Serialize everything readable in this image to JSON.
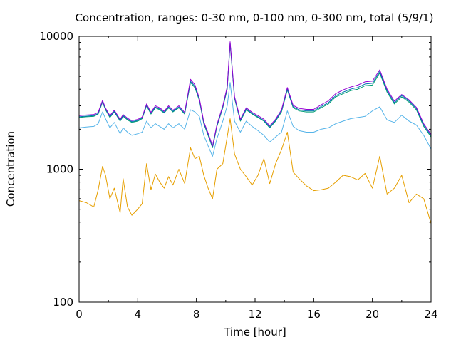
{
  "chart_data": {
    "type": "line",
    "title": "Concentration, ranges: 0-30 nm, 0-100 nm, 0-300 nm, total (5/9/1)",
    "xlabel": "Time [hour]",
    "ylabel": "Concentration",
    "xlim": [
      0,
      24
    ],
    "ylim": [
      100,
      10000
    ],
    "yscale": "log",
    "grid": false,
    "legend": "none",
    "x_ticks": [
      0,
      4,
      8,
      12,
      16,
      20,
      24
    ],
    "x_tick_labels": [
      "0",
      "4",
      "8",
      "12",
      "16",
      "20",
      "24"
    ],
    "y_ticks": [
      100,
      1000,
      10000
    ],
    "y_tick_labels": [
      "100",
      "1000",
      "10000"
    ],
    "series": [
      {
        "color": "#e69f00",
        "x": [
          0,
          0.5,
          1,
          1.3,
          1.6,
          1.8,
          2.1,
          2.4,
          2.8,
          3.0,
          3.3,
          3.6,
          4.0,
          4.3,
          4.6,
          4.9,
          5.2,
          5.5,
          5.8,
          6.1,
          6.4,
          6.8,
          7.2,
          7.6,
          7.9,
          8.2,
          8.5,
          8.8,
          9.1,
          9.4,
          9.8,
          10.1,
          10.3,
          10.6,
          11.0,
          11.4,
          11.8,
          12.2,
          12.6,
          13.0,
          13.4,
          13.8,
          14.2,
          14.6,
          15.0,
          15.5,
          16.0,
          16.5,
          17.0,
          17.5,
          18.0,
          18.5,
          19.0,
          19.5,
          20.0,
          20.5,
          21.0,
          21.5,
          22.0,
          22.5,
          23.0,
          23.5,
          24.0
        ],
        "values": [
          580,
          560,
          520,
          700,
          1050,
          900,
          600,
          720,
          470,
          850,
          520,
          450,
          500,
          550,
          1100,
          700,
          920,
          800,
          720,
          880,
          760,
          1000,
          780,
          1450,
          1200,
          1250,
          900,
          720,
          600,
          1000,
          1100,
          1750,
          2400,
          1300,
          1000,
          880,
          760,
          900,
          1200,
          780,
          1100,
          1400,
          1900,
          950,
          850,
          750,
          690,
          700,
          720,
          800,
          900,
          880,
          830,
          930,
          720,
          1250,
          650,
          720,
          900,
          560,
          650,
          600,
          390
        ]
      },
      {
        "color": "#56b4e9",
        "x": [
          0,
          0.5,
          1,
          1.3,
          1.6,
          1.8,
          2.1,
          2.4,
          2.8,
          3.0,
          3.3,
          3.6,
          4.0,
          4.3,
          4.6,
          4.9,
          5.2,
          5.5,
          5.8,
          6.1,
          6.4,
          6.8,
          7.2,
          7.6,
          7.9,
          8.2,
          8.5,
          8.8,
          9.1,
          9.4,
          9.8,
          10.1,
          10.3,
          10.6,
          11.0,
          11.4,
          11.8,
          12.2,
          12.6,
          13.0,
          13.4,
          13.8,
          14.2,
          14.6,
          15.0,
          15.5,
          16.0,
          16.5,
          17.0,
          17.5,
          18.0,
          18.5,
          19.0,
          19.5,
          20.0,
          20.5,
          21.0,
          21.5,
          22.0,
          22.5,
          23.0,
          23.5,
          24.0
        ],
        "values": [
          2050,
          2080,
          2100,
          2200,
          2700,
          2400,
          2050,
          2250,
          1850,
          2050,
          1900,
          1800,
          1850,
          1900,
          2300,
          2050,
          2200,
          2100,
          2000,
          2200,
          2050,
          2200,
          2000,
          2800,
          2700,
          2500,
          1800,
          1500,
          1250,
          1700,
          2300,
          3000,
          4500,
          2300,
          1900,
          2300,
          2100,
          1950,
          1800,
          1600,
          1750,
          1900,
          2750,
          2100,
          1950,
          1900,
          1900,
          2000,
          2050,
          2200,
          2300,
          2400,
          2450,
          2500,
          2750,
          2950,
          2350,
          2250,
          2550,
          2300,
          2150,
          1800,
          1420
        ]
      },
      {
        "color": "#009e73",
        "x": [
          0,
          0.5,
          1,
          1.3,
          1.6,
          1.8,
          2.1,
          2.4,
          2.8,
          3.0,
          3.3,
          3.6,
          4.0,
          4.3,
          4.6,
          4.9,
          5.2,
          5.5,
          5.8,
          6.1,
          6.4,
          6.8,
          7.2,
          7.6,
          7.9,
          8.2,
          8.5,
          8.8,
          9.1,
          9.4,
          9.8,
          10.1,
          10.3,
          10.6,
          11.0,
          11.4,
          11.8,
          12.2,
          12.6,
          13.0,
          13.4,
          13.8,
          14.2,
          14.6,
          15.0,
          15.5,
          16.0,
          16.5,
          17.0,
          17.5,
          18.0,
          18.5,
          19.0,
          19.5,
          20.0,
          20.5,
          21.0,
          21.5,
          22.0,
          22.5,
          23.0,
          23.5,
          24.0
        ],
        "values": [
          2450,
          2480,
          2500,
          2600,
          3200,
          2800,
          2450,
          2700,
          2300,
          2500,
          2350,
          2250,
          2300,
          2400,
          3000,
          2600,
          2900,
          2800,
          2650,
          2900,
          2700,
          2900,
          2600,
          4500,
          4100,
          3300,
          2200,
          1800,
          1450,
          2100,
          2900,
          4000,
          8800,
          3400,
          2300,
          2800,
          2600,
          2450,
          2300,
          2050,
          2300,
          2700,
          3950,
          2900,
          2750,
          2700,
          2700,
          2900,
          3100,
          3500,
          3700,
          3900,
          4000,
          4250,
          4300,
          5300,
          3800,
          3100,
          3500,
          3200,
          2800,
          2100,
          1750
        ]
      },
      {
        "color": "#0072b2",
        "x": [
          0,
          0.5,
          1,
          1.3,
          1.6,
          1.8,
          2.1,
          2.4,
          2.8,
          3.0,
          3.3,
          3.6,
          4.0,
          4.3,
          4.6,
          4.9,
          5.2,
          5.5,
          5.8,
          6.1,
          6.4,
          6.8,
          7.2,
          7.6,
          7.9,
          8.2,
          8.5,
          8.8,
          9.1,
          9.4,
          9.8,
          10.1,
          10.3,
          10.6,
          11.0,
          11.4,
          11.8,
          12.2,
          12.6,
          13.0,
          13.4,
          13.8,
          14.2,
          14.6,
          15.0,
          15.5,
          16.0,
          16.5,
          17.0,
          17.5,
          18.0,
          18.5,
          19.0,
          19.5,
          20.0,
          20.5,
          21.0,
          21.5,
          22.0,
          22.5,
          23.0,
          23.5,
          24.0
        ],
        "values": [
          2480,
          2510,
          2530,
          2630,
          3240,
          2830,
          2480,
          2730,
          2330,
          2530,
          2380,
          2280,
          2330,
          2430,
          3040,
          2630,
          2940,
          2840,
          2680,
          2940,
          2730,
          2940,
          2630,
          4600,
          4200,
          3350,
          2230,
          1830,
          1470,
          2130,
          2940,
          4080,
          9000,
          3450,
          2330,
          2840,
          2630,
          2480,
          2330,
          2080,
          2330,
          2740,
          4020,
          2950,
          2800,
          2750,
          2750,
          2960,
          3170,
          3580,
          3800,
          4000,
          4120,
          4380,
          4430,
          5450,
          3900,
          3170,
          3580,
          3270,
          2860,
          2150,
          1790
        ]
      },
      {
        "color": "#9400d3",
        "x": [
          0,
          0.5,
          1,
          1.3,
          1.6,
          1.8,
          2.1,
          2.4,
          2.8,
          3.0,
          3.3,
          3.6,
          4.0,
          4.3,
          4.6,
          4.9,
          5.2,
          5.5,
          5.8,
          6.1,
          6.4,
          6.8,
          7.2,
          7.6,
          7.9,
          8.2,
          8.5,
          8.8,
          9.1,
          9.4,
          9.8,
          10.1,
          10.3,
          10.6,
          11.0,
          11.4,
          11.8,
          12.2,
          12.6,
          13.0,
          13.4,
          13.8,
          14.2,
          14.6,
          15.0,
          15.5,
          16.0,
          16.5,
          17.0,
          17.5,
          18.0,
          18.5,
          19.0,
          19.5,
          20.0,
          20.5,
          21.0,
          21.5,
          22.0,
          22.5,
          23.0,
          23.5,
          24.0
        ],
        "values": [
          2530,
          2560,
          2580,
          2680,
          3300,
          2880,
          2530,
          2780,
          2370,
          2580,
          2420,
          2320,
          2370,
          2470,
          3100,
          2680,
          3000,
          2900,
          2730,
          3000,
          2780,
          3000,
          2680,
          4750,
          4320,
          3420,
          2280,
          1870,
          1500,
          2170,
          3000,
          4170,
          9100,
          3520,
          2380,
          2900,
          2680,
          2530,
          2380,
          2120,
          2380,
          2800,
          4120,
          3020,
          2870,
          2820,
          2820,
          3050,
          3270,
          3700,
          3950,
          4150,
          4300,
          4550,
          4600,
          5600,
          4000,
          3250,
          3650,
          3330,
          2920,
          2200,
          1830
        ]
      }
    ]
  }
}
